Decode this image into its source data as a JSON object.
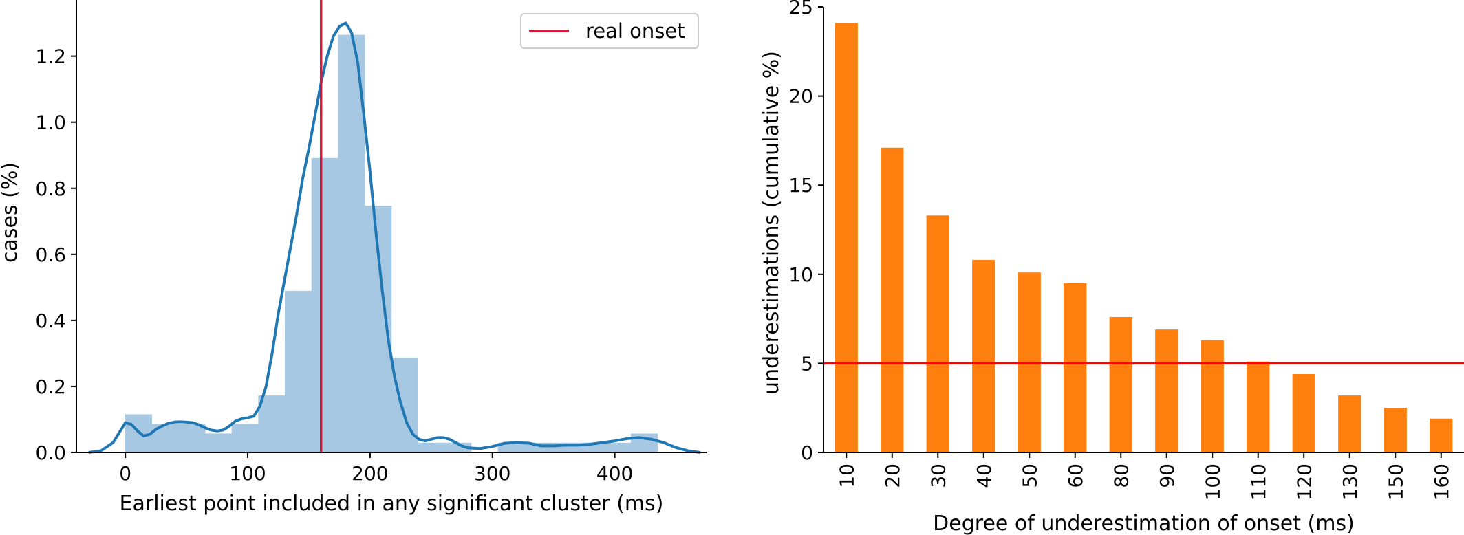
{
  "colors": {
    "hist_fill": "#a6c8e2",
    "kde_line": "#1f77b4",
    "onset_line": "#d6183c",
    "bar_fill": "#ff7f0e",
    "threshold_line": "#ff0000",
    "axis": "#000000"
  },
  "chart_data": [
    {
      "type": "histogram",
      "xlabel": "Earliest point included in any significant cluster (ms)",
      "ylabel": "cases (%)",
      "xlim": [
        -40,
        475
      ],
      "ylim": [
        0,
        1.37
      ],
      "xticks": [
        0,
        100,
        200,
        300,
        400
      ],
      "yticks": [
        0.0,
        0.2,
        0.4,
        0.6,
        0.8,
        1.0,
        1.2
      ],
      "ytick_labels": [
        "0.0",
        "0.2",
        "0.4",
        "0.6",
        "0.8",
        "1.0",
        "1.2"
      ],
      "bin_width": 21.75,
      "bins": [
        {
          "x0": 0,
          "x1": 21.75,
          "value": 0.115
        },
        {
          "x0": 21.75,
          "x1": 43.5,
          "value": 0.086
        },
        {
          "x0": 43.5,
          "x1": 65.25,
          "value": 0.086
        },
        {
          "x0": 65.25,
          "x1": 87,
          "value": 0.057
        },
        {
          "x0": 87,
          "x1": 108.75,
          "value": 0.086
        },
        {
          "x0": 108.75,
          "x1": 130.5,
          "value": 0.172
        },
        {
          "x0": 130.5,
          "x1": 152.25,
          "value": 0.489
        },
        {
          "x0": 152.25,
          "x1": 174,
          "value": 0.891
        },
        {
          "x0": 174,
          "x1": 195.75,
          "value": 1.264
        },
        {
          "x0": 195.75,
          "x1": 217.5,
          "value": 0.747
        },
        {
          "x0": 217.5,
          "x1": 239.25,
          "value": 0.287
        },
        {
          "x0": 239.25,
          "x1": 261,
          "value": 0.029
        },
        {
          "x0": 261,
          "x1": 282.75,
          "value": 0.029
        },
        {
          "x0": 282.75,
          "x1": 304.5,
          "value": 0.0
        },
        {
          "x0": 304.5,
          "x1": 326.25,
          "value": 0.029
        },
        {
          "x0": 326.25,
          "x1": 348,
          "value": 0.029
        },
        {
          "x0": 348,
          "x1": 369.75,
          "value": 0.029
        },
        {
          "x0": 369.75,
          "x1": 391.5,
          "value": 0.029
        },
        {
          "x0": 391.5,
          "x1": 413.25,
          "value": 0.029
        },
        {
          "x0": 413.25,
          "x1": 435,
          "value": 0.057
        }
      ],
      "kde": {
        "x": [
          -30,
          -20,
          -10,
          -5,
          0,
          5,
          10,
          15,
          20,
          25,
          30,
          35,
          40,
          45,
          50,
          55,
          60,
          65,
          70,
          75,
          80,
          85,
          90,
          95,
          100,
          105,
          110,
          115,
          120,
          125,
          130,
          135,
          140,
          145,
          150,
          155,
          160,
          165,
          170,
          175,
          180,
          182,
          185,
          190,
          195,
          200,
          205,
          210,
          215,
          220,
          225,
          230,
          235,
          240,
          245,
          250,
          255,
          260,
          265,
          270,
          275,
          280,
          290,
          300,
          310,
          320,
          330,
          340,
          350,
          360,
          370,
          380,
          390,
          400,
          410,
          420,
          430,
          440,
          450,
          460,
          470
        ],
        "y": [
          0.0,
          0.005,
          0.03,
          0.06,
          0.09,
          0.085,
          0.065,
          0.05,
          0.055,
          0.07,
          0.08,
          0.088,
          0.092,
          0.093,
          0.092,
          0.09,
          0.084,
          0.075,
          0.068,
          0.065,
          0.068,
          0.08,
          0.095,
          0.102,
          0.105,
          0.11,
          0.14,
          0.2,
          0.3,
          0.42,
          0.52,
          0.62,
          0.72,
          0.83,
          0.92,
          1.02,
          1.12,
          1.2,
          1.26,
          1.29,
          1.3,
          1.29,
          1.27,
          1.18,
          1.02,
          0.85,
          0.66,
          0.49,
          0.34,
          0.23,
          0.15,
          0.09,
          0.055,
          0.04,
          0.035,
          0.04,
          0.045,
          0.045,
          0.04,
          0.03,
          0.02,
          0.014,
          0.012,
          0.018,
          0.028,
          0.03,
          0.028,
          0.02,
          0.02,
          0.022,
          0.022,
          0.025,
          0.03,
          0.035,
          0.042,
          0.045,
          0.04,
          0.03,
          0.015,
          0.005,
          0.0
        ]
      },
      "onset_x": 160,
      "legend": {
        "label": "real onset",
        "position": "top-right"
      }
    },
    {
      "type": "bar",
      "xlabel": "Degree of underestimation of onset (ms)",
      "ylabel": "underestimations (cumulative %)",
      "categories": [
        "10",
        "20",
        "30",
        "40",
        "50",
        "60",
        "80",
        "90",
        "100",
        "110",
        "120",
        "130",
        "150",
        "160"
      ],
      "values": [
        24.1,
        17.1,
        13.3,
        10.8,
        10.1,
        9.5,
        7.6,
        6.9,
        6.3,
        5.1,
        4.4,
        3.2,
        2.5,
        1.9
      ],
      "ylim": [
        0,
        25
      ],
      "yticks": [
        0,
        5,
        10,
        15,
        20,
        25
      ],
      "threshold": 5
    }
  ]
}
